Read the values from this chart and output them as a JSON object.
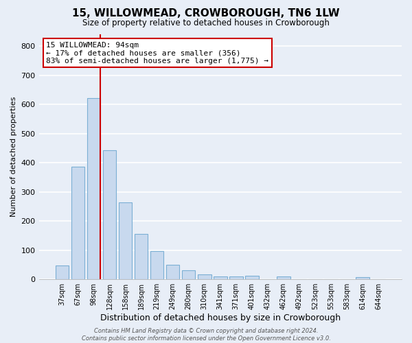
{
  "title": "15, WILLOWMEAD, CROWBOROUGH, TN6 1LW",
  "subtitle": "Size of property relative to detached houses in Crowborough",
  "xlabel": "Distribution of detached houses by size in Crowborough",
  "ylabel": "Number of detached properties",
  "bar_labels": [
    "37sqm",
    "67sqm",
    "98sqm",
    "128sqm",
    "158sqm",
    "189sqm",
    "219sqm",
    "249sqm",
    "280sqm",
    "310sqm",
    "341sqm",
    "371sqm",
    "401sqm",
    "432sqm",
    "462sqm",
    "492sqm",
    "523sqm",
    "553sqm",
    "583sqm",
    "614sqm",
    "644sqm"
  ],
  "bar_values": [
    48,
    385,
    622,
    443,
    265,
    156,
    97,
    51,
    31,
    18,
    10,
    10,
    12,
    0,
    10,
    0,
    0,
    0,
    0,
    7,
    0
  ],
  "bar_color": "#c8d9ee",
  "bar_edge_color": "#7bafd4",
  "highlight_color": "#cc0000",
  "vline_bar_index": 2,
  "ylim": [
    0,
    840
  ],
  "yticks": [
    0,
    100,
    200,
    300,
    400,
    500,
    600,
    700,
    800
  ],
  "annotation_line1": "15 WILLOWMEAD: 94sqm",
  "annotation_line2": "← 17% of detached houses are smaller (356)",
  "annotation_line3": "83% of semi-detached houses are larger (1,775) →",
  "annotation_box_color": "#ffffff",
  "annotation_box_edge": "#cc0000",
  "footnote": "Contains HM Land Registry data © Crown copyright and database right 2024.\nContains public sector information licensed under the Open Government Licence v3.0.",
  "background_color": "#e8eef7",
  "grid_color": "#ffffff"
}
